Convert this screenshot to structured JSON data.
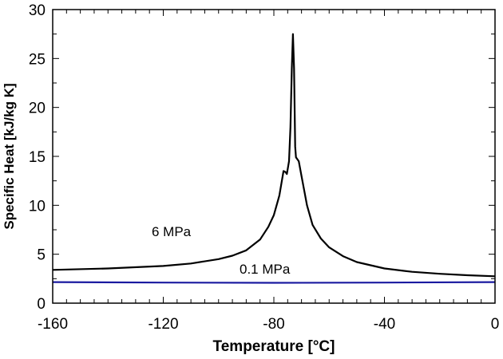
{
  "chart_data": {
    "type": "line",
    "xlabel": "Temperature [°C]",
    "ylabel": "Specific Heat [kJ/kg K]",
    "xlim": [
      -160,
      0
    ],
    "ylim": [
      0,
      30
    ],
    "xticks": [
      "-160",
      "-120",
      "-80",
      "-40",
      "0"
    ],
    "yticks": [
      "0",
      "5",
      "10",
      "15",
      "20",
      "25",
      "30"
    ],
    "grid": false,
    "series": [
      {
        "name": "6 MPa",
        "color": "#000000",
        "x": [
          -160,
          -140,
          -120,
          -110,
          -100,
          -95,
          -90,
          -85,
          -82,
          -80,
          -78,
          -76.5,
          -75.8,
          -75.3,
          -74.5,
          -74,
          -73.5,
          -73.1,
          -72.7,
          -72.3,
          -72,
          -71,
          -70,
          -68,
          -66,
          -63,
          -60,
          -55,
          -50,
          -40,
          -30,
          -20,
          -10,
          0
        ],
        "y": [
          3.4,
          3.55,
          3.8,
          4.05,
          4.5,
          4.85,
          5.4,
          6.5,
          7.8,
          9.0,
          11,
          13.5,
          13.4,
          13.2,
          14.5,
          18,
          24,
          27.5,
          24,
          16,
          14.9,
          14.5,
          13,
          10,
          8,
          6.6,
          5.7,
          4.8,
          4.2,
          3.55,
          3.2,
          3.0,
          2.85,
          2.75
        ]
      },
      {
        "name": "0.1 MPa",
        "color": "#1a1aa0",
        "x": [
          -160,
          -120,
          -80,
          -40,
          0
        ],
        "y": [
          2.15,
          2.1,
          2.08,
          2.1,
          2.15
        ]
      }
    ]
  }
}
